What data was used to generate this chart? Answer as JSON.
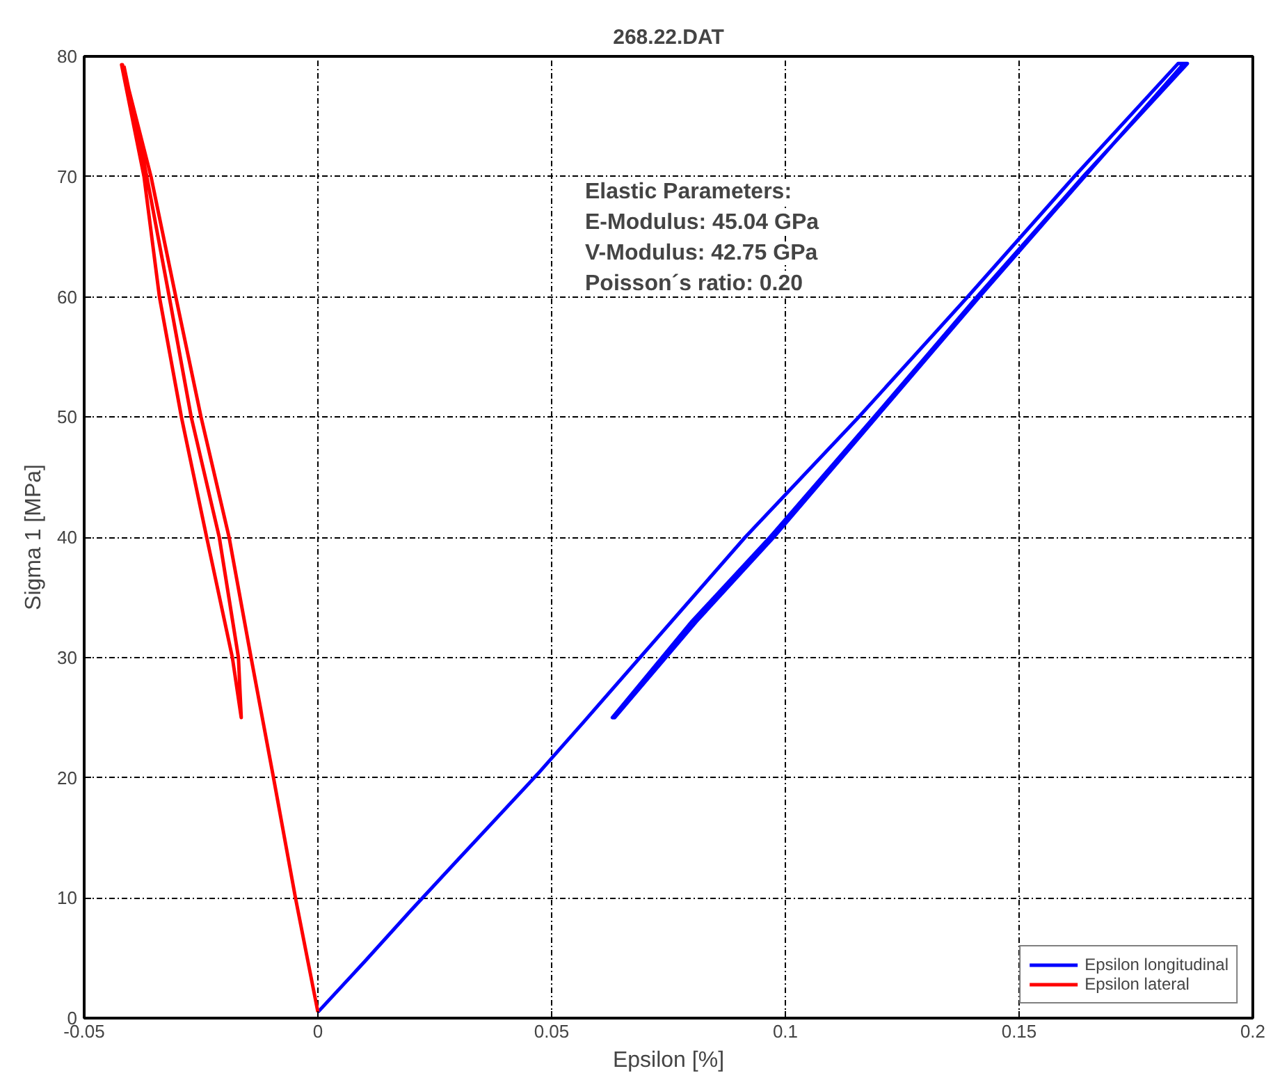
{
  "chart_data": {
    "type": "line",
    "title": "268.22.DAT",
    "xlabel": "Epsilon [%]",
    "ylabel": "Sigma 1 [MPa]",
    "xlim": [
      -0.05,
      0.2
    ],
    "xticks": [
      -0.05,
      0,
      0.05,
      0.1,
      0.15,
      0.2
    ],
    "ylim": [
      0,
      80
    ],
    "yticks": [
      0,
      10,
      20,
      30,
      40,
      50,
      60,
      70,
      80
    ],
    "grid": true,
    "legend": "bottom right",
    "marker": "none",
    "line_style": "solid",
    "series": [
      {
        "name": "Epsilon longitudinal",
        "color": "#0000ff",
        "x": [
          0,
          0.01,
          0.02,
          0.03,
          0.047,
          0.057,
          0.0914,
          0.1157,
          0.139,
          0.1618,
          0.184,
          0.186,
          0.1637,
          0.141,
          0.119,
          0.0967,
          0.08,
          0.063,
          0.0635,
          0.081,
          0.0975,
          0.1195,
          0.1415,
          0.164,
          0.185
        ],
        "values": [
          0.5,
          4.7,
          9,
          13.2,
          20.3,
          24.7,
          40,
          50,
          60,
          70,
          79.4,
          79.4,
          70,
          60,
          50,
          40,
          33,
          25,
          25,
          33,
          40,
          50,
          60,
          70,
          79.3
        ]
      },
      {
        "name": "Epsilon lateral",
        "color": "#ff0000",
        "x": [
          0,
          -0.0048,
          -0.0095,
          -0.0143,
          -0.019,
          -0.025,
          -0.0304,
          -0.0357,
          -0.0418,
          -0.042,
          -0.0372,
          -0.0339,
          -0.0292,
          -0.0238,
          -0.0183,
          -0.0164,
          -0.0164,
          -0.017,
          -0.0211,
          -0.0271,
          -0.0318,
          -0.0366,
          -0.0415
        ],
        "values": [
          0.5,
          10,
          20,
          30,
          40,
          50,
          60,
          70,
          79.3,
          79.3,
          70,
          60,
          50,
          40,
          30,
          25,
          25,
          30,
          40,
          50,
          60,
          70,
          79.2
        ]
      }
    ],
    "annotations": [
      "Elastic Parameters:",
      "E-Modulus: 45.04 GPa",
      "V-Modulus: 42.75 GPa",
      "Poisson´s ratio:  0.20"
    ]
  }
}
